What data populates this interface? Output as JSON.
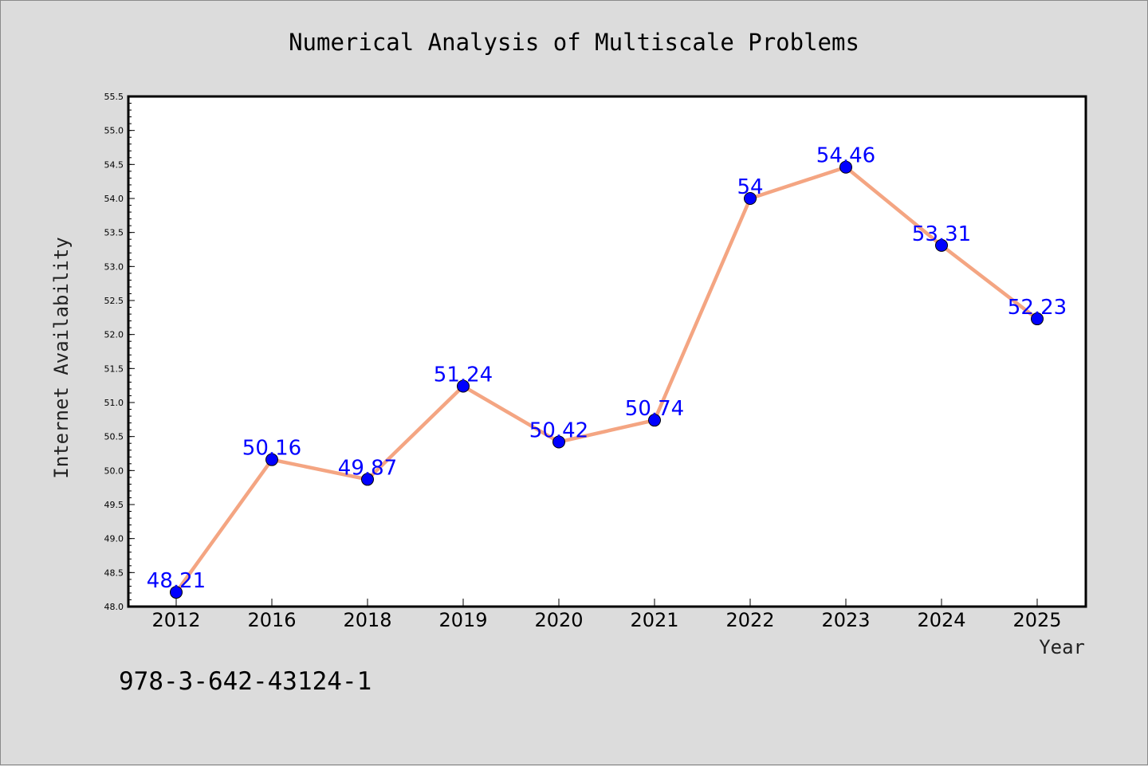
{
  "chart_data": {
    "type": "line",
    "title": "Numerical Analysis of Multiscale Problems",
    "xlabel": "Year",
    "ylabel": "Internet Availability",
    "categories": [
      "2012",
      "2016",
      "2018",
      "2019",
      "2020",
      "2021",
      "2022",
      "2023",
      "2024",
      "2025"
    ],
    "series": [
      {
        "values": [
          48.21,
          50.16,
          49.87,
          51.24,
          50.42,
          50.74,
          54,
          54.46,
          53.31,
          52.23
        ],
        "data_labels": [
          "48.21",
          "50.16",
          "49.87",
          "51.24",
          "50.42",
          "50.74",
          "54",
          "54.46",
          "53.31",
          "52.23"
        ],
        "line_color": "#f4a582",
        "marker_color": "#0000ff"
      }
    ],
    "ylim": [
      48.0,
      55.5
    ],
    "yticks": [
      "48.0",
      "48.5",
      "49.0",
      "49.5",
      "50.0",
      "50.5",
      "51.0",
      "51.5",
      "52.0",
      "52.5",
      "53.0",
      "53.5",
      "54.0",
      "54.5",
      "55.0",
      "55.5"
    ],
    "grid": false,
    "legend": "none"
  },
  "footer": {
    "isbn": "978-3-642-43124-1"
  },
  "colors": {
    "background": "#dcdcdc",
    "plot_background": "#ffffff",
    "line": "#f4a582",
    "marker": "#0000ff",
    "data_label": "#0000ff"
  }
}
